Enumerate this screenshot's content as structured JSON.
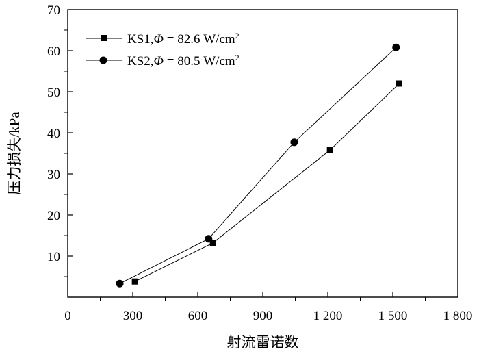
{
  "chart_data": {
    "type": "line",
    "title": "",
    "xlabel": "射流雷诺数",
    "ylabel": "压力损失/kPa",
    "xlim": [
      0,
      1800
    ],
    "ylim": [
      0,
      70
    ],
    "x_ticks": [
      {
        "value": 0,
        "label": "0"
      },
      {
        "value": 300,
        "label": "300"
      },
      {
        "value": 600,
        "label": "600"
      },
      {
        "value": 900,
        "label": "900"
      },
      {
        "value": 1200,
        "label": "1 200"
      },
      {
        "value": 1500,
        "label": "1 500"
      },
      {
        "value": 1800,
        "label": "1 800"
      }
    ],
    "y_ticks": [
      {
        "value": 10,
        "label": "10"
      },
      {
        "value": 20,
        "label": "20"
      },
      {
        "value": 30,
        "label": "30"
      },
      {
        "value": 40,
        "label": "40"
      },
      {
        "value": 50,
        "label": "50"
      },
      {
        "value": 60,
        "label": "60"
      },
      {
        "value": 70,
        "label": "70"
      }
    ],
    "legend_position": "top-left",
    "series": [
      {
        "name": "KS1,Φ = 82.6 W/cm²",
        "legend": {
          "prefix": "KS1,",
          "symbol": "Φ",
          "suffix": " = 82.6 W/cm",
          "sup": "2"
        },
        "marker": "square",
        "x": [
          310,
          670,
          1210,
          1530
        ],
        "y": [
          3.8,
          13.2,
          35.8,
          52.0
        ]
      },
      {
        "name": "KS2,Φ = 80.5 W/cm²",
        "legend": {
          "prefix": "KS2,",
          "symbol": "Φ",
          "suffix": " = 80.5 W/cm",
          "sup": "2"
        },
        "marker": "circle",
        "x": [
          240,
          650,
          1045,
          1515
        ],
        "y": [
          3.3,
          14.2,
          37.7,
          60.8
        ]
      }
    ]
  }
}
